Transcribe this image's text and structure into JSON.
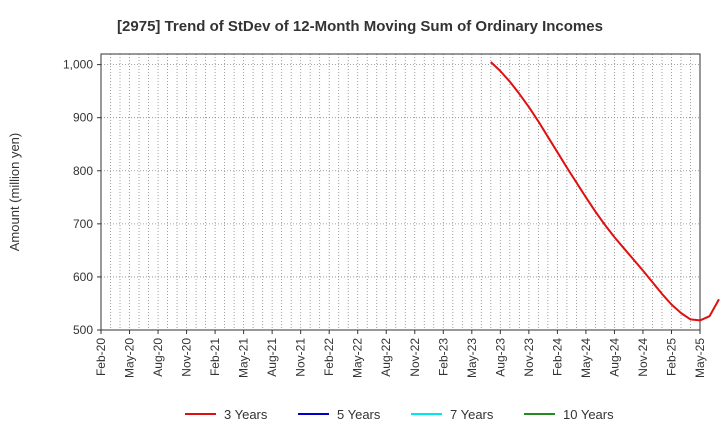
{
  "chart_data": {
    "type": "line",
    "title": "[2975]  Trend of StDev of 12-Month Moving Sum of Ordinary Incomes",
    "xlabel": "",
    "ylabel": "Amount (million yen)",
    "x_ticks": [
      "Feb-20",
      "May-20",
      "Aug-20",
      "Nov-20",
      "Feb-21",
      "May-21",
      "Aug-21",
      "Nov-21",
      "Feb-22",
      "May-22",
      "Aug-22",
      "Nov-22",
      "Feb-23",
      "May-23",
      "Aug-23",
      "Nov-23",
      "Feb-24",
      "May-24",
      "Aug-24",
      "Nov-24",
      "Feb-25",
      "May-25"
    ],
    "y_ticks": [
      "500",
      "600",
      "700",
      "800",
      "900",
      "1,000"
    ],
    "ylim": [
      500,
      1020
    ],
    "xlim": [
      "2020-02",
      "2025-05"
    ],
    "grid": true,
    "legend_position": "bottom",
    "series": [
      {
        "name": "3 Years",
        "color": "#dd1111",
        "points": [
          [
            "2023-07",
            1005
          ],
          [
            "2023-08",
            988
          ],
          [
            "2023-09",
            968
          ],
          [
            "2023-10",
            945
          ],
          [
            "2023-11",
            920
          ],
          [
            "2023-12",
            893
          ],
          [
            "2024-01",
            864
          ],
          [
            "2024-02",
            835
          ],
          [
            "2024-03",
            806
          ],
          [
            "2024-04",
            778
          ],
          [
            "2024-05",
            750
          ],
          [
            "2024-06",
            723
          ],
          [
            "2024-07",
            698
          ],
          [
            "2024-08",
            675
          ],
          [
            "2024-09",
            654
          ],
          [
            "2024-10",
            633
          ],
          [
            "2024-11",
            612
          ],
          [
            "2024-12",
            590
          ],
          [
            "2025-01",
            568
          ],
          [
            "2025-02",
            548
          ],
          [
            "2025-03",
            532
          ],
          [
            "2025-04",
            520
          ],
          [
            "2025-05",
            518
          ],
          [
            "2025-06",
            526
          ],
          [
            "2025-07",
            558
          ]
        ]
      },
      {
        "name": "5 Years",
        "color": "#0000cc",
        "points": []
      },
      {
        "name": "7 Years",
        "color": "#00e5ee",
        "points": []
      },
      {
        "name": "10 Years",
        "color": "#228b22",
        "points": []
      }
    ]
  }
}
